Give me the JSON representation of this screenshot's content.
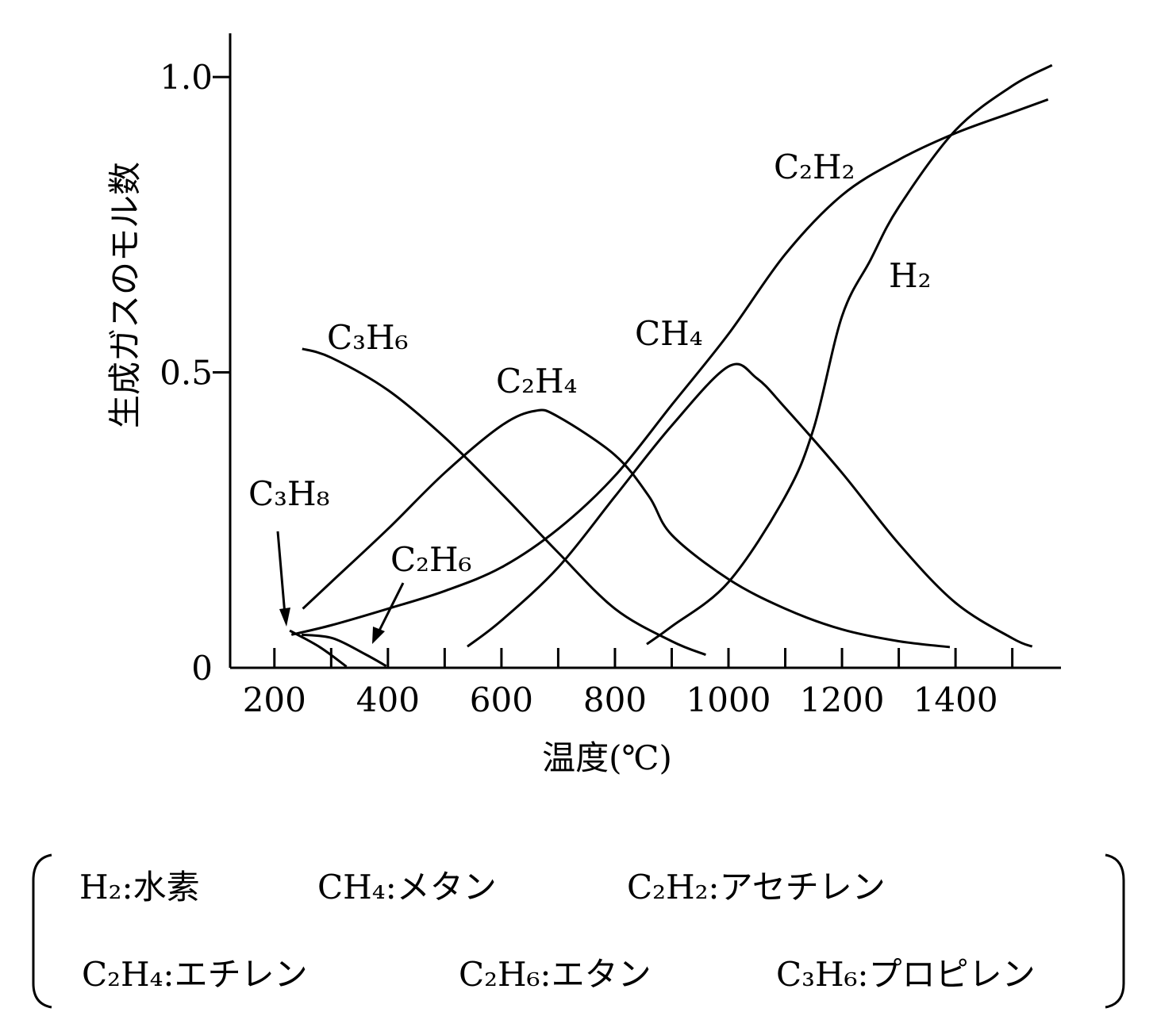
{
  "chart_data": {
    "type": "line",
    "xlabel": "温度(℃)",
    "ylabel": "生成ガスのモル数",
    "xlim": [
      122,
      1583
    ],
    "ylim": [
      0,
      1.074
    ],
    "xticks": [
      200,
      400,
      600,
      800,
      1000,
      1200,
      1400
    ],
    "xminor_ticks": [
      300,
      500,
      700,
      900,
      1100,
      1300,
      1500
    ],
    "yticks": [
      0,
      0.5,
      {
        "value": 1,
        "label": "1.0"
      }
    ],
    "color": "#000000",
    "series": [
      {
        "name": "C₃H₆",
        "x": [
          249,
          300,
          400,
          500,
          600,
          700,
          800,
          900,
          960
        ],
        "values": [
          0.54,
          0.525,
          0.47,
          0.39,
          0.295,
          0.195,
          0.1,
          0.045,
          0.022
        ]
      },
      {
        "name": "C₂H₄",
        "x": [
          250,
          300,
          400,
          500,
          600,
          660,
          700,
          800,
          860,
          900,
          1000,
          1100,
          1200,
          1300,
          1390
        ],
        "values": [
          0.1,
          0.145,
          0.235,
          0.33,
          0.41,
          0.435,
          0.425,
          0.36,
          0.29,
          0.225,
          0.15,
          0.1,
          0.065,
          0.045,
          0.035
        ]
      },
      {
        "name": "CH₄",
        "x": [
          540,
          600,
          700,
          800,
          900,
          1000,
          1050,
          1100,
          1200,
          1300,
          1400,
          1500,
          1535
        ],
        "values": [
          0.036,
          0.08,
          0.17,
          0.29,
          0.41,
          0.51,
          0.49,
          0.44,
          0.33,
          0.21,
          0.11,
          0.05,
          0.036
        ]
      },
      {
        "name": "C₂H₂",
        "x": [
          230,
          300,
          400,
          500,
          600,
          700,
          800,
          900,
          1000,
          1100,
          1200,
          1300,
          1400,
          1500,
          1563
        ],
        "values": [
          0.056,
          0.072,
          0.1,
          0.13,
          0.17,
          0.235,
          0.325,
          0.445,
          0.565,
          0.7,
          0.8,
          0.86,
          0.905,
          0.94,
          0.962
        ]
      },
      {
        "name": "H₂",
        "x": [
          856,
          900,
          1000,
          1100,
          1150,
          1200,
          1250,
          1300,
          1400,
          1500,
          1570
        ],
        "values": [
          0.04,
          0.07,
          0.145,
          0.29,
          0.405,
          0.595,
          0.69,
          0.78,
          0.91,
          0.985,
          1.02
        ]
      },
      {
        "name": "C₃H₈",
        "x": [
          227,
          280,
          327
        ],
        "values": [
          0.063,
          0.035,
          0.002
        ]
      },
      {
        "name": "C₂H₆",
        "x": [
          248,
          303,
          360,
          397
        ],
        "values": [
          0.056,
          0.05,
          0.023,
          0.003
        ]
      }
    ]
  },
  "glossary": [
    "H₂:水素",
    "CH₄:メタン",
    "C₂H₂:アセチレン",
    "C₂H₄:エチレン",
    "C₂H₆:エタン",
    "C₃H₆:プロピレン"
  ]
}
